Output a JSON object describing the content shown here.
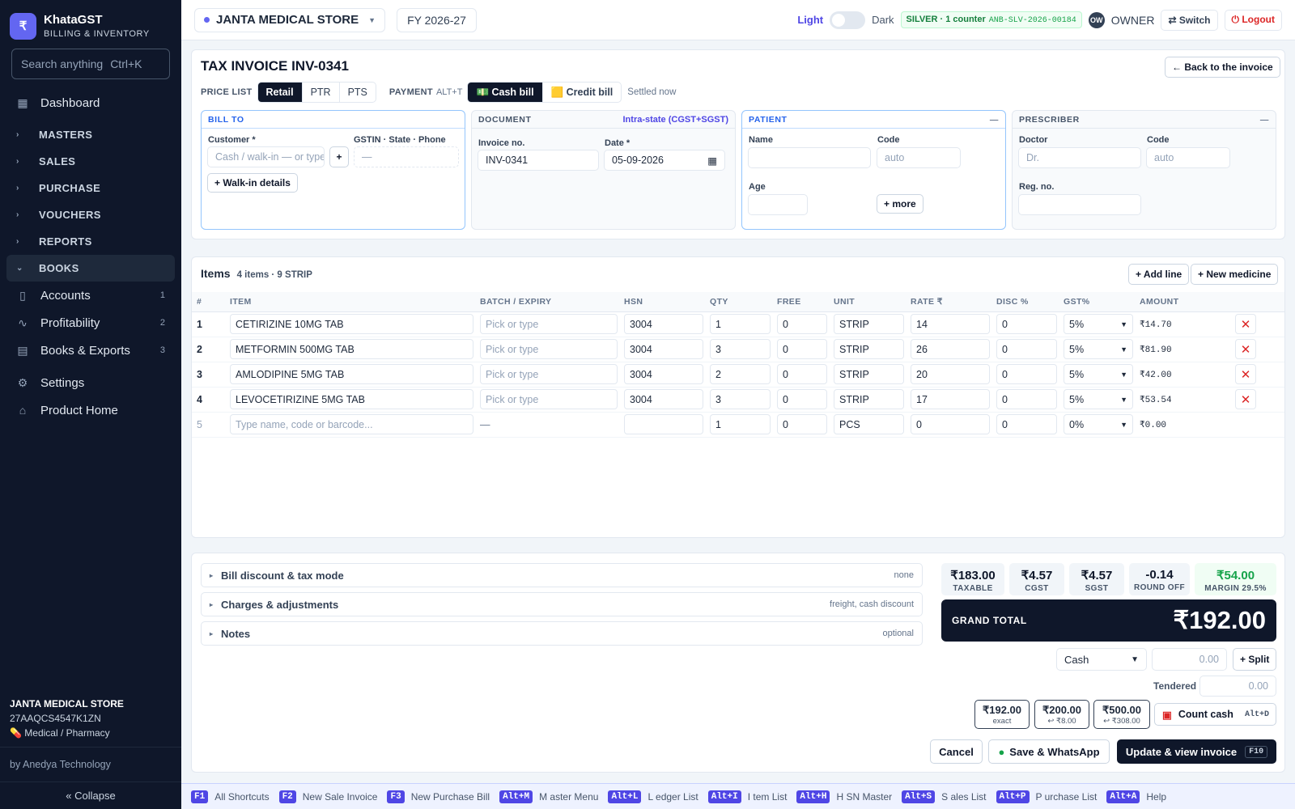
{
  "app": {
    "name": "KhataGST",
    "tagline": "BILLING & INVENTORY",
    "logo_glyph": "₹"
  },
  "sidebar": {
    "search_placeholder": "Search anything",
    "search_shortcut": "Ctrl+K",
    "dashboard": "Dashboard",
    "groups": [
      "MASTERS",
      "SALES",
      "PURCHASE",
      "VOUCHERS",
      "REPORTS"
    ],
    "books": "BOOKS",
    "book_items": [
      {
        "label": "Accounts",
        "badge": "1",
        "icon": "book-icon"
      },
      {
        "label": "Profitability",
        "badge": "2",
        "icon": "pulse-icon"
      },
      {
        "label": "Books & Exports",
        "badge": "3",
        "icon": "ledger-icon"
      }
    ],
    "settings": "Settings",
    "product_home": "Product Home",
    "company": {
      "name": "JANTA MEDICAL STORE",
      "gstin": "27AAQCS4547K1ZN",
      "type": "💊 Medical / Pharmacy"
    },
    "by": "by Anedya Technology",
    "collapse": "« Collapse"
  },
  "topbar": {
    "store": "JANTA MEDICAL STORE",
    "fy": "FY 2026-27",
    "light": "Light",
    "dark": "Dark",
    "license": "SILVER · 1 counter",
    "license_code": "ANB-SLV-2026-00184",
    "avatar": "OW",
    "role": "OWNER",
    "switch": "⇄ Switch",
    "logout": "⏻ Logout"
  },
  "invoice": {
    "title": "TAX INVOICE INV-0341",
    "back": "← Back to the invoice",
    "price_list_label": "PRICE LIST",
    "price_lists": [
      "Retail",
      "PTR",
      "PTS"
    ],
    "payment_label": "PAYMENT",
    "payment_shortcut": "ALT+T",
    "cash_bill": "💵 Cash bill",
    "credit_bill": "🟨 Credit bill",
    "settled": "Settled now"
  },
  "bill_to": {
    "header": "BILL TO",
    "customer_label": "Customer *",
    "customer_placeholder": "Cash / walk-in — or type",
    "plus": "+",
    "gstin_label": "GSTIN · State · Phone",
    "gstin_value": "—",
    "walkin": "+ Walk-in details"
  },
  "document": {
    "header": "DOCUMENT",
    "mode": "Intra-state (CGST+SGST)",
    "invoice_no_label": "Invoice no.",
    "invoice_no": "INV-0341",
    "date_label": "Date *",
    "date": "05-09-2026"
  },
  "patient": {
    "header": "PATIENT",
    "name_label": "Name",
    "code_label": "Code",
    "code_placeholder": "auto",
    "age_label": "Age",
    "more": "+ more"
  },
  "prescriber": {
    "header": "PRESCRIBER",
    "doctor_label": "Doctor",
    "doctor_placeholder": "Dr.",
    "code_label": "Code",
    "code_placeholder": "auto",
    "reg_label": "Reg. no."
  },
  "items": {
    "title": "Items",
    "summary": "4 items · 9 STRIP",
    "add_line": "+ Add line",
    "new_medicine": "+ New medicine",
    "columns": [
      "#",
      "ITEM",
      "BATCH / EXPIRY",
      "HSN",
      "QTY",
      "FREE",
      "UNIT",
      "RATE ₹",
      "DISC %",
      "GST%",
      "AMOUNT"
    ],
    "batch_placeholder": "Pick or type",
    "rows": [
      {
        "n": "1",
        "item": "CETIRIZINE 10MG TAB",
        "hsn": "3004",
        "qty": "1",
        "free": "0",
        "unit": "STRIP",
        "rate": "14",
        "disc": "0",
        "gst": "5%",
        "amount": "₹14.70"
      },
      {
        "n": "2",
        "item": "METFORMIN 500MG TAB",
        "hsn": "3004",
        "qty": "3",
        "free": "0",
        "unit": "STRIP",
        "rate": "26",
        "disc": "0",
        "gst": "5%",
        "amount": "₹81.90"
      },
      {
        "n": "3",
        "item": "AMLODIPINE 5MG TAB",
        "hsn": "3004",
        "qty": "2",
        "free": "0",
        "unit": "STRIP",
        "rate": "20",
        "disc": "0",
        "gst": "5%",
        "amount": "₹42.00"
      },
      {
        "n": "4",
        "item": "LEVOCETIRIZINE 5MG TAB",
        "hsn": "3004",
        "qty": "3",
        "free": "0",
        "unit": "STRIP",
        "rate": "17",
        "disc": "0",
        "gst": "5%",
        "amount": "₹53.54"
      }
    ],
    "new_row": {
      "n": "5",
      "placeholder": "Type name, code or barcode...",
      "batch": "—",
      "qty": "1",
      "free": "0",
      "unit": "PCS",
      "rate": "0",
      "disc": "0",
      "gst": "0%",
      "amount": "₹0.00"
    }
  },
  "footer": {
    "accordions": [
      {
        "label": "Bill discount & tax mode",
        "hint": "none"
      },
      {
        "label": "Charges & adjustments",
        "hint": "freight, cash discount"
      },
      {
        "label": "Notes",
        "hint": "optional"
      }
    ],
    "totals": [
      {
        "value": "₹183.00",
        "label": "TAXABLE"
      },
      {
        "value": "₹4.57",
        "label": "CGST"
      },
      {
        "value": "₹4.57",
        "label": "SGST"
      },
      {
        "value": "-0.14",
        "label": "ROUND OFF"
      },
      {
        "value": "₹54.00",
        "label": "MARGIN 29.5%"
      }
    ],
    "grand_label": "GRAND TOTAL",
    "grand_value": "₹192.00",
    "pay_mode": "Cash",
    "pay_amount": "0.00",
    "split": "+ Split",
    "tendered_label": "Tendered",
    "tendered": "0.00",
    "quick": [
      {
        "a": "₹192.00",
        "b": "exact"
      },
      {
        "a": "₹200.00",
        "b": "↩ ₹8.00"
      },
      {
        "a": "₹500.00",
        "b": "↩ ₹308.00"
      }
    ],
    "count_cash": "Count cash",
    "count_cash_key": "Alt+D",
    "cancel": "Cancel",
    "save_whatsapp": "Save & WhatsApp",
    "update": "Update & view invoice",
    "update_key": "F10"
  },
  "shortcuts": [
    {
      "key": "F1",
      "label": "All Shortcuts"
    },
    {
      "key": "F2",
      "label": "New Sale Invoice"
    },
    {
      "key": "F3",
      "label": "New Purchase Bill"
    },
    {
      "key": "Alt+M",
      "label": "M aster Menu"
    },
    {
      "key": "Alt+L",
      "label": "L edger List"
    },
    {
      "key": "Alt+I",
      "label": "I tem List"
    },
    {
      "key": "Alt+H",
      "label": "H SN Master"
    },
    {
      "key": "Alt+S",
      "label": "S ales List"
    },
    {
      "key": "Alt+P",
      "label": "P urchase List"
    },
    {
      "key": "Alt+A",
      "label": "Help"
    }
  ],
  "colors": {
    "accent": "#6366f1",
    "sidebar": "#0f172a",
    "danger": "#dc2626",
    "success": "#16a34a"
  }
}
